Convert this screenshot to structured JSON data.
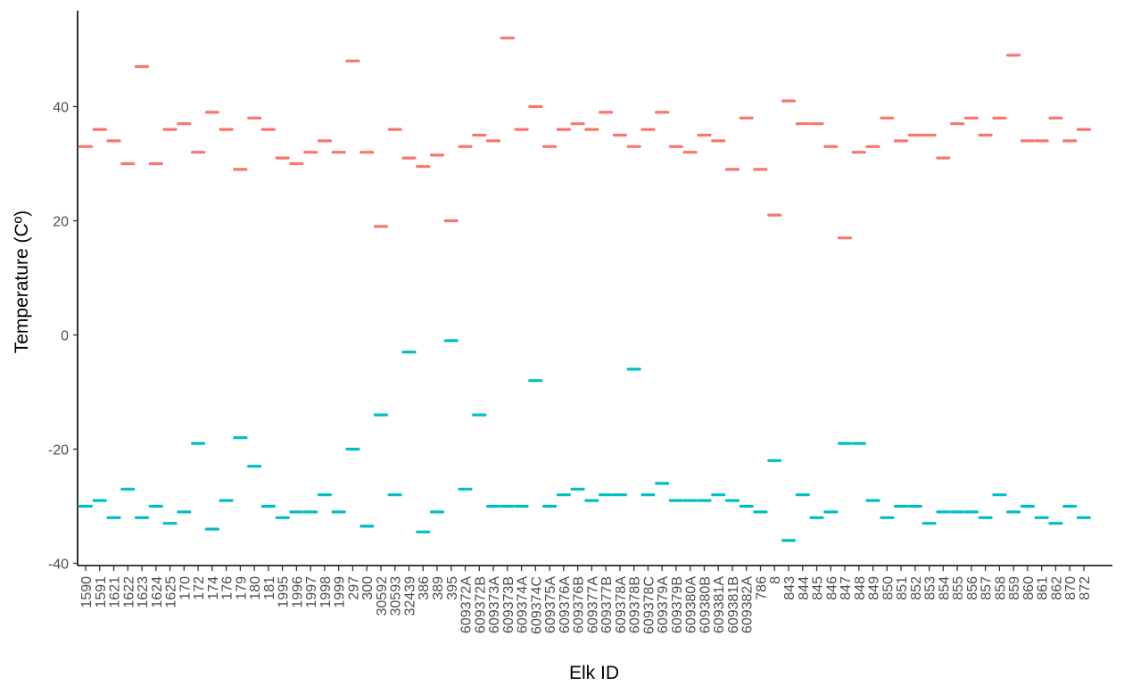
{
  "chart_data": {
    "type": "scatter",
    "title": "",
    "xlabel": "Elk ID",
    "ylabel": "Temperature (Cº)",
    "ylim": [
      -40.5,
      55
    ],
    "yticks": [
      40,
      20,
      0,
      -20,
      -40
    ],
    "grid": false,
    "legend": "none",
    "categories": [
      "1590",
      "1591",
      "1621",
      "1622",
      "1623",
      "1624",
      "1625",
      "170",
      "172",
      "174",
      "176",
      "179",
      "180",
      "181",
      "1995",
      "1996",
      "1997",
      "1998",
      "1999",
      "297",
      "300",
      "30592",
      "30593",
      "32439",
      "386",
      "389",
      "395",
      "609372A",
      "609372B",
      "609373A",
      "609373B",
      "609374A",
      "609374C",
      "609375A",
      "609376A",
      "609376B",
      "609377A",
      "609377B",
      "609378A",
      "609378B",
      "609378C",
      "609379A",
      "609379B",
      "609380A",
      "609380B",
      "609381A",
      "609381B",
      "609382A",
      "786",
      "8",
      "843",
      "844",
      "845",
      "846",
      "847",
      "848",
      "849",
      "850",
      "851",
      "852",
      "853",
      "854",
      "855",
      "856",
      "857",
      "858",
      "859",
      "860",
      "861",
      "862",
      "870",
      "872"
    ],
    "series": [
      {
        "color": "#F8766D",
        "values": [
          33,
          36,
          34,
          30,
          47,
          30,
          36,
          37,
          32,
          39,
          36,
          29,
          38,
          36,
          31,
          30,
          32,
          34,
          32,
          48,
          32,
          19,
          36,
          31,
          29.5,
          31.5,
          20,
          33,
          35,
          34,
          52,
          36,
          40,
          33,
          36,
          37,
          36,
          39,
          35,
          33,
          36,
          39,
          33,
          32,
          35,
          34,
          29,
          38,
          29,
          21,
          41,
          37,
          37,
          33,
          17,
          32,
          33,
          38,
          34,
          35,
          35,
          31,
          37,
          38,
          35,
          38,
          49,
          34,
          34,
          38,
          34,
          36
        ]
      },
      {
        "color": "#00BFC4",
        "values": [
          -30,
          -29,
          -32,
          -27,
          -32,
          -30,
          -33,
          -31,
          -19,
          -34,
          -29,
          -18,
          -23,
          -30,
          -32,
          -31,
          -31,
          -28,
          -31,
          -20,
          -33.5,
          -14,
          -28,
          -3,
          -34.5,
          -31,
          -1,
          -27,
          -14,
          -30,
          -30,
          -30,
          -8,
          -30,
          -28,
          -27,
          -29,
          -28,
          -28,
          -6,
          -28,
          -26,
          -29,
          -29,
          -29,
          -28,
          -29,
          -30,
          -31,
          -22,
          -36,
          -28,
          -32,
          -31,
          -19,
          -19,
          -29,
          -32,
          -30,
          -30,
          -33,
          -31,
          -31,
          -31,
          -32,
          -28,
          -31,
          -30,
          -32,
          -33,
          -30,
          -32
        ]
      }
    ]
  }
}
